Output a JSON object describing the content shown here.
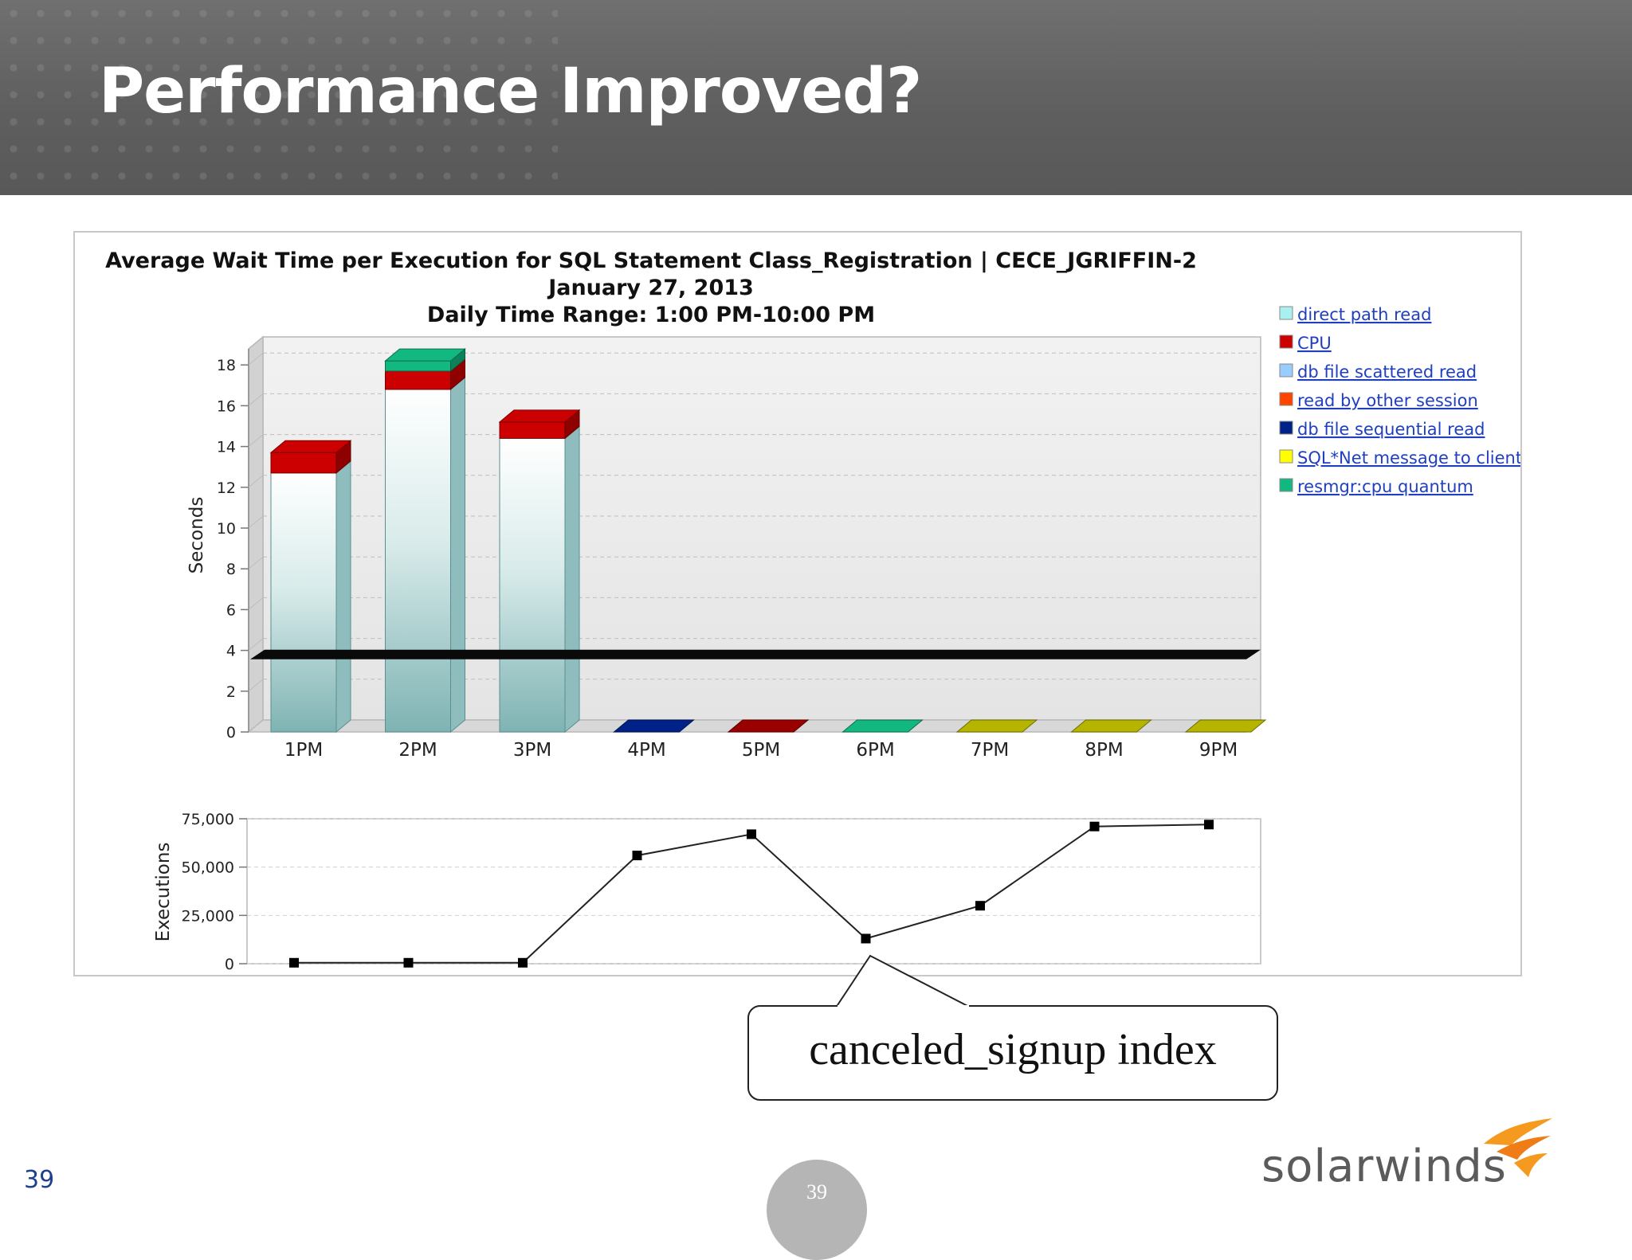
{
  "slide": {
    "title": "Performance Improved?",
    "number_left": "39",
    "number_center": "39",
    "logo_text": "solarwinds",
    "callout_text": "canceled_signup index"
  },
  "colors": {
    "header_bg": "#616161",
    "bar_gradient_top": "#ffffff",
    "bar_gradient_bottom": "#7fb3b3",
    "cpu": "#cc0000",
    "resmgr": "#13b880",
    "legend_link": "#1f3fbf",
    "logo_orange": "#f59a1f"
  },
  "chart_data": [
    {
      "type": "bar",
      "stacked": true,
      "title": "Average Wait Time per Execution for SQL Statement Class_Registration  |  CECE_JGRIFFIN-2",
      "subtitle_lines": [
        "January 27, 2013",
        "Daily Time Range: 1:00 PM-10:00 PM"
      ],
      "categories": [
        "1PM",
        "2PM",
        "3PM",
        "4PM",
        "5PM",
        "6PM",
        "7PM",
        "8PM",
        "9PM"
      ],
      "ylabel": "Seconds",
      "ylim": [
        0,
        19
      ],
      "yticks": [
        "0",
        "2",
        "4",
        "6",
        "8",
        "10",
        "12",
        "14",
        "16",
        "18"
      ],
      "grid": true,
      "legend_position": "right",
      "legend": [
        {
          "name": "direct path read",
          "color": "#aaf0f0"
        },
        {
          "name": "CPU",
          "color": "#cc0000"
        },
        {
          "name": "db file scattered read",
          "color": "#99ccff"
        },
        {
          "name": "read by other session",
          "color": "#ff4400"
        },
        {
          "name": "db file sequential read",
          "color": "#002288"
        },
        {
          "name": "SQL*Net message to client",
          "color": "#ffff00"
        },
        {
          "name": "resmgr:cpu quantum",
          "color": "#13b880"
        }
      ],
      "series": [
        {
          "name": "direct path read",
          "values": [
            12.7,
            16.8,
            14.4,
            0,
            0,
            0,
            0,
            0,
            0
          ]
        },
        {
          "name": "CPU",
          "values": [
            1.0,
            0.9,
            0.8,
            0,
            0,
            0,
            0,
            0,
            0
          ]
        },
        {
          "name": "resmgr:cpu quantum",
          "values": [
            0,
            0.5,
            0,
            0,
            0,
            0,
            0,
            0,
            0
          ]
        }
      ],
      "reference_line_value": 3.8,
      "zero_slab_colors": [
        "#002288",
        "#990000",
        "#13b880",
        "#b5b500",
        "#b5b500",
        "#b5b500"
      ]
    },
    {
      "type": "line",
      "categories": [
        "1PM",
        "2PM",
        "3PM",
        "4PM",
        "5PM",
        "6PM",
        "7PM",
        "8PM",
        "9PM"
      ],
      "ylabel": "Executions",
      "ylim": [
        0,
        75000
      ],
      "yticks": [
        "0",
        "25,000",
        "50,000",
        "75,000"
      ],
      "values": [
        500,
        500,
        500,
        56000,
        67000,
        13000,
        30000,
        71000,
        72000
      ],
      "grid": true
    }
  ]
}
